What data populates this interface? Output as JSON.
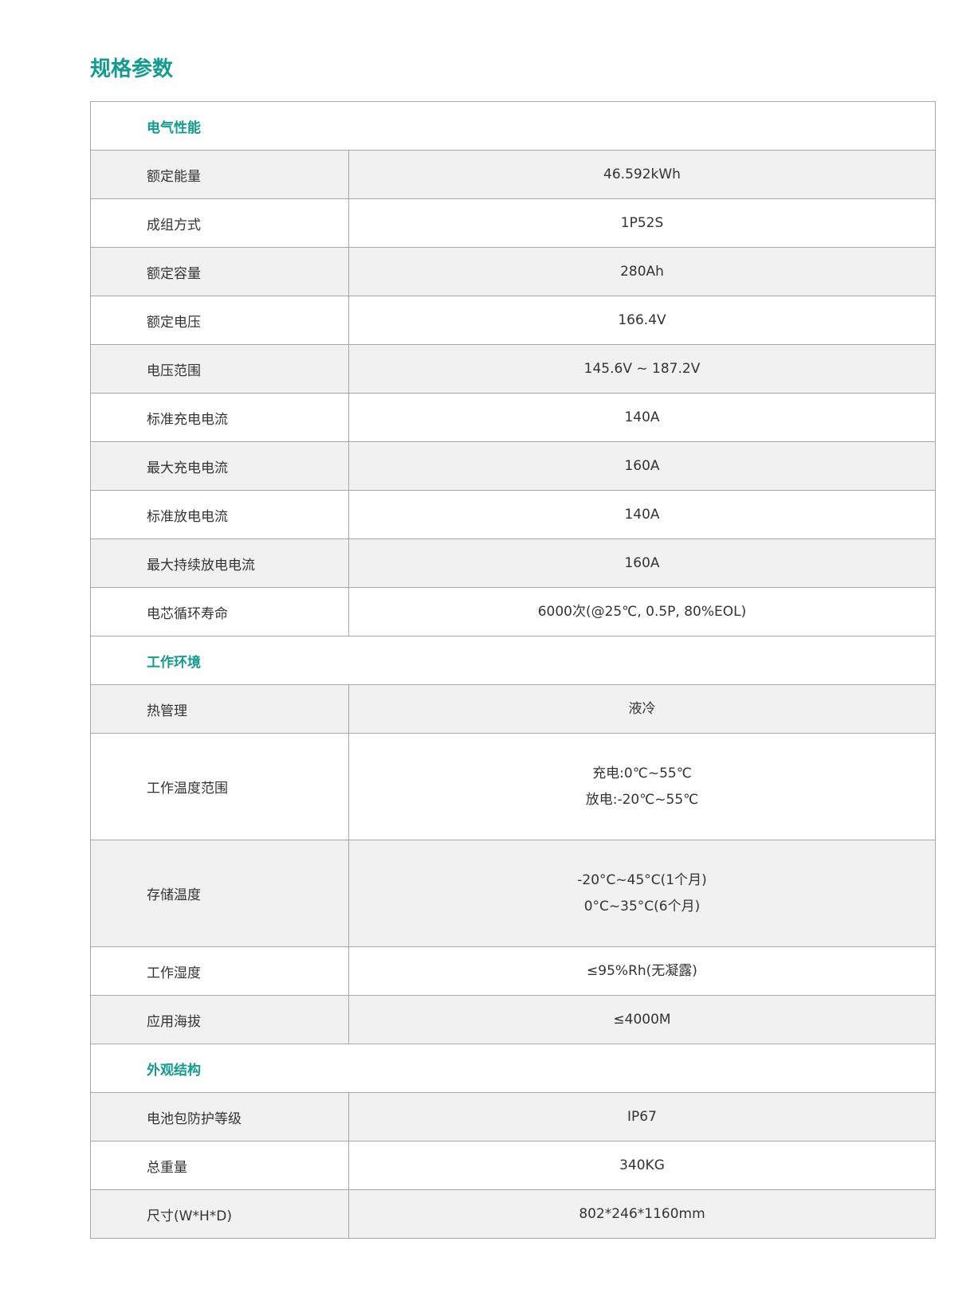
{
  "title": "规格参数",
  "sections": [
    {
      "heading": "电气性能",
      "rows": [
        {
          "label": "额定能量",
          "value": [
            "46.592kWh"
          ]
        },
        {
          "label": "成组方式",
          "value": [
            "1P52S"
          ]
        },
        {
          "label": "额定容量",
          "value": [
            "280Ah"
          ]
        },
        {
          "label": "额定电压",
          "value": [
            "166.4V"
          ]
        },
        {
          "label": "电压范围",
          "value": [
            "145.6V ~ 187.2V"
          ]
        },
        {
          "label": "标准充电电流",
          "value": [
            "140A"
          ]
        },
        {
          "label": "最大充电电流",
          "value": [
            "160A"
          ]
        },
        {
          "label": "标准放电电流",
          "value": [
            "140A"
          ]
        },
        {
          "label": "最大持续放电电流",
          "value": [
            "160A"
          ]
        },
        {
          "label": "电芯循环寿命",
          "value": [
            "6000次(@25℃, 0.5P, 80%EOL)"
          ]
        }
      ]
    },
    {
      "heading": "工作环境",
      "rows": [
        {
          "label": "热管理",
          "value": [
            "液冷"
          ]
        },
        {
          "label": "工作温度范围",
          "value": [
            "充电:0℃~55℃",
            "放电:-20℃~55℃"
          ]
        },
        {
          "label": "存储温度",
          "value": [
            "-20°C~45°C(1个月)",
            "0°C~35°C(6个月)"
          ]
        },
        {
          "label": "工作湿度",
          "value": [
            "≤95%Rh(无凝露)"
          ]
        },
        {
          "label": "应用海拔",
          "value": [
            "≤4000M"
          ]
        }
      ]
    },
    {
      "heading": "外观结构",
      "rows": [
        {
          "label": "电池包防护等级",
          "value": [
            "IP67"
          ]
        },
        {
          "label": "总重量",
          "value": [
            "340KG"
          ]
        },
        {
          "label": "尺寸(W*H*D)",
          "value": [
            "802*246*1160mm"
          ]
        }
      ]
    }
  ]
}
